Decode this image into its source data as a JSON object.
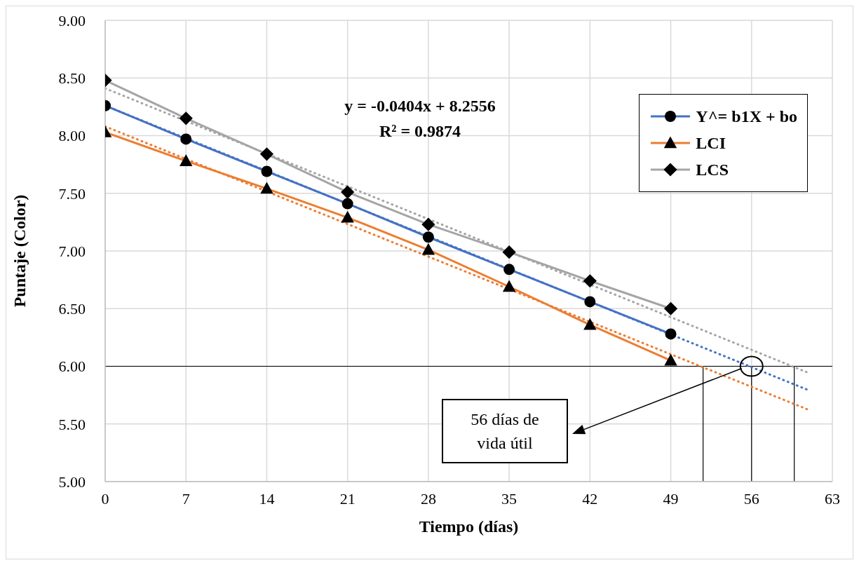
{
  "chart_data": {
    "type": "line",
    "xlabel": "Tiempo (días)",
    "ylabel": "Puntaje (Color)",
    "x": [
      0,
      7,
      14,
      21,
      28,
      35,
      42,
      49,
      61
    ],
    "xlim": [
      0,
      63
    ],
    "xticks": [
      0,
      7,
      14,
      21,
      28,
      35,
      42,
      49,
      56,
      63
    ],
    "ylim": [
      5,
      9
    ],
    "yticks": [
      {
        "value": 5,
        "label": "5.00"
      },
      {
        "value": 5.5,
        "label": "5.50"
      },
      {
        "value": 6,
        "label": "6.00"
      },
      {
        "value": 6.5,
        "label": "6.50"
      },
      {
        "value": 7,
        "label": "7.00"
      },
      {
        "value": 7.5,
        "label": "7.50"
      },
      {
        "value": 8,
        "label": "8.00"
      },
      {
        "value": 8.5,
        "label": "8.50"
      },
      {
        "value": 9,
        "label": "9.00"
      }
    ],
    "grid": true,
    "legend": "top right",
    "line_style": "solid",
    "series": [
      {
        "name": "Y^= b1X + bo",
        "color": "#4472c4",
        "marker": "circle",
        "values": [
          8.26,
          7.97,
          7.69,
          7.41,
          7.12,
          6.84,
          6.56,
          6.28,
          null
        ]
      },
      {
        "name": "LCI",
        "color": "#ed7d31",
        "marker": "triangle",
        "values": [
          8.03,
          7.78,
          7.54,
          7.29,
          7.01,
          6.69,
          6.36,
          6.05,
          null
        ]
      },
      {
        "name": "LCS",
        "color": "#a5a5a5",
        "marker": "diamond",
        "values": [
          8.48,
          8.15,
          7.84,
          7.51,
          7.23,
          6.99,
          6.74,
          6.5,
          null
        ]
      },
      {
        "type": "line",
        "color": "#a5a5a5",
        "line_style": "dotted",
        "values": [
          8.41,
          null,
          null,
          null,
          null,
          null,
          null,
          null,
          5.94
        ]
      },
      {
        "type": "line",
        "color": "#ed7d31",
        "line_style": "dotted",
        "values": [
          8.08,
          null,
          null,
          null,
          null,
          null,
          null,
          null,
          5.62
        ]
      },
      {
        "type": "line",
        "color": "#4472c4",
        "line_style": "dotted",
        "values": [
          8.26,
          null,
          null,
          null,
          null,
          null,
          null,
          null,
          5.79
        ]
      }
    ],
    "ref_lines": [
      {
        "axis": "y",
        "value": 6,
        "color": "#000000"
      },
      {
        "axis": "x",
        "value": 51.8,
        "color": "#000000"
      },
      {
        "axis": "x",
        "value": 56,
        "color": "#000000"
      },
      {
        "axis": "x",
        "value": 59.7,
        "color": "#000000"
      }
    ],
    "annotations": [
      "y = -0.0404x + 8.2556",
      "R² = 0.9874",
      "56 días de vida útil"
    ]
  }
}
